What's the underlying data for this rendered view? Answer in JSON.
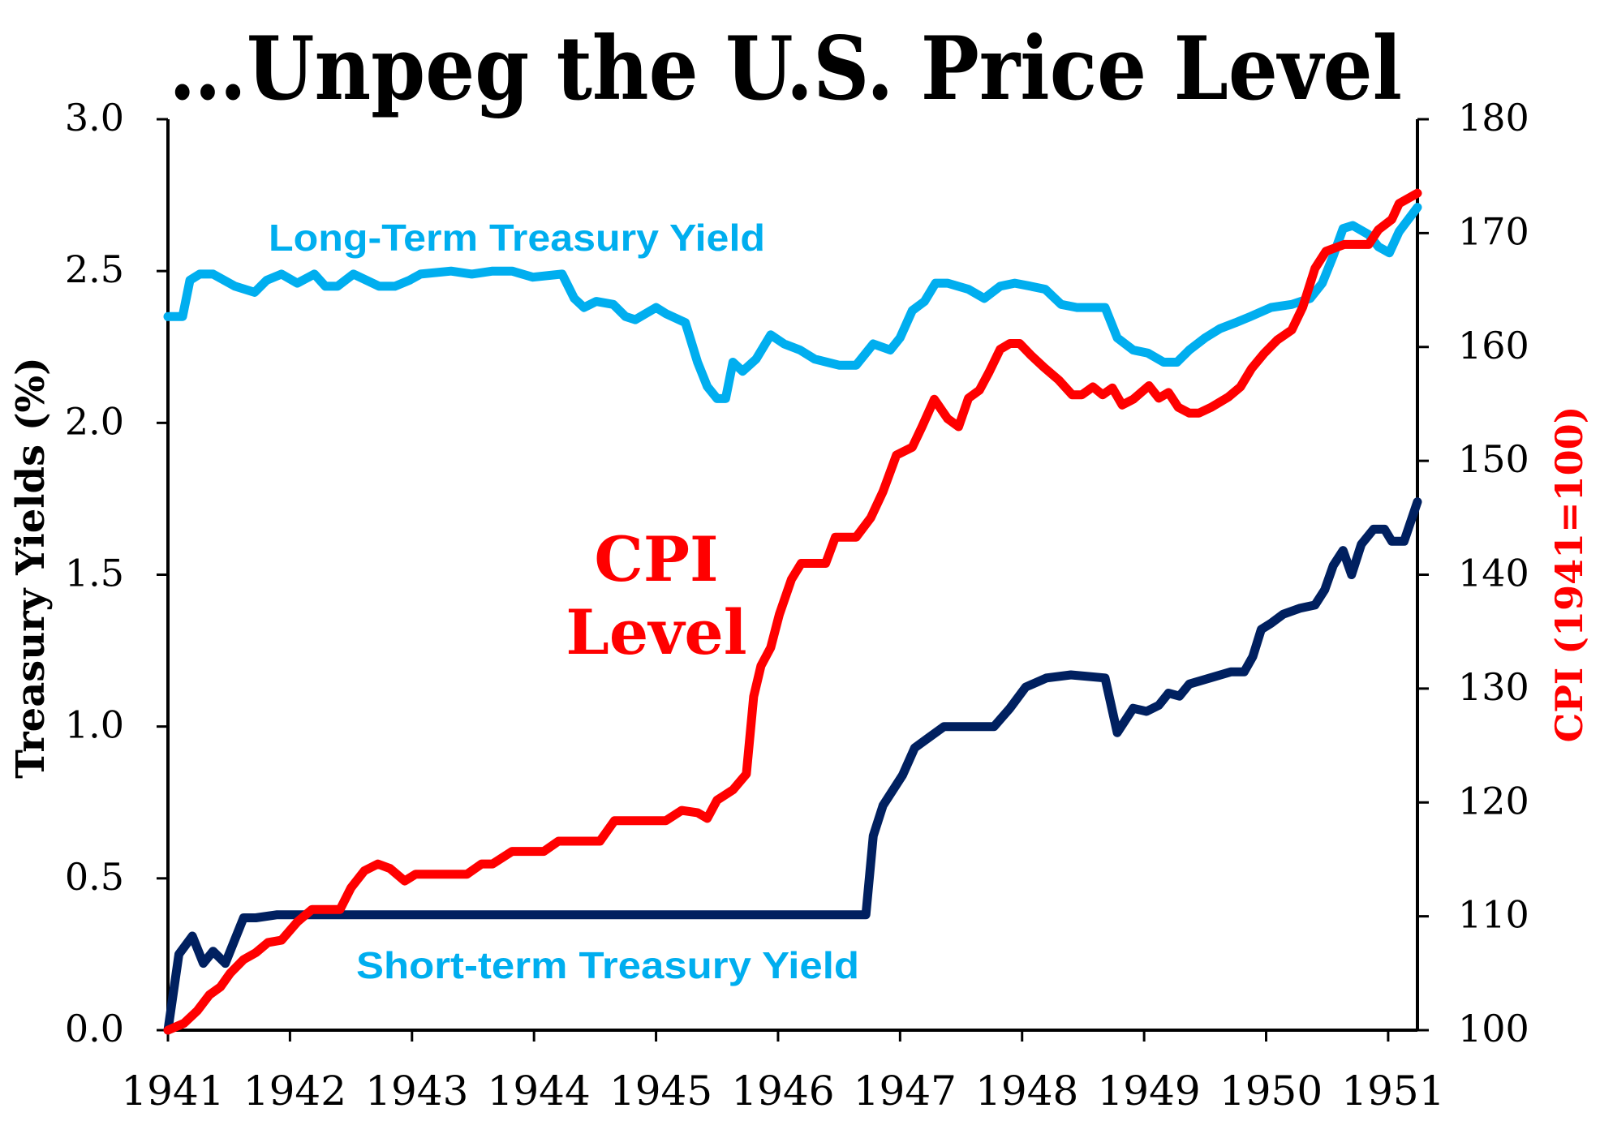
{
  "chart_data": {
    "type": "line",
    "title": "…Unpeg the U.S. Price Level",
    "ylabel": "Treasury Yields (%)",
    "y2label": "CPI (1941=100)",
    "xlabel": "",
    "xlim": [
      1941,
      1951.24
    ],
    "ylim": [
      0,
      3.0
    ],
    "y2lim": [
      100,
      180
    ],
    "x_ticks": [
      "1941",
      "1942",
      "1943",
      "1944",
      "1945",
      "1946",
      "1947",
      "1948",
      "1949",
      "1950",
      "1951"
    ],
    "y_ticks": [
      "0.0",
      "0.5",
      "1.0",
      "1.5",
      "2.0",
      "2.5",
      "3.0"
    ],
    "y2_ticks": [
      "100",
      "110",
      "120",
      "130",
      "140",
      "150",
      "160",
      "170",
      "180"
    ],
    "grid": false,
    "annotations": {
      "long_term": "Long-Term Treasury Yield",
      "short_term": "Short-term Treasury Yield",
      "cpi_line1": "CPI",
      "cpi_line2": "Level"
    },
    "series": [
      {
        "name": "Long-Term Treasury Yield",
        "axis": "left",
        "color": "#00AEEF",
        "points": [
          [
            1941.0,
            2.35
          ],
          [
            1941.12,
            2.35
          ],
          [
            1941.18,
            2.47
          ],
          [
            1941.26,
            2.49
          ],
          [
            1941.37,
            2.49
          ],
          [
            1941.55,
            2.45
          ],
          [
            1941.71,
            2.43
          ],
          [
            1941.81,
            2.47
          ],
          [
            1941.93,
            2.49
          ],
          [
            1942.06,
            2.46
          ],
          [
            1942.2,
            2.49
          ],
          [
            1942.29,
            2.45
          ],
          [
            1942.39,
            2.45
          ],
          [
            1942.52,
            2.49
          ],
          [
            1942.73,
            2.45
          ],
          [
            1942.86,
            2.45
          ],
          [
            1942.98,
            2.47
          ],
          [
            1943.07,
            2.49
          ],
          [
            1943.32,
            2.5
          ],
          [
            1943.49,
            2.49
          ],
          [
            1943.66,
            2.5
          ],
          [
            1943.82,
            2.5
          ],
          [
            1943.99,
            2.48
          ],
          [
            1944.23,
            2.49
          ],
          [
            1944.33,
            2.41
          ],
          [
            1944.41,
            2.38
          ],
          [
            1944.51,
            2.4
          ],
          [
            1944.65,
            2.39
          ],
          [
            1944.75,
            2.35
          ],
          [
            1944.83,
            2.34
          ],
          [
            1945.0,
            2.38
          ],
          [
            1945.08,
            2.36
          ],
          [
            1945.24,
            2.33
          ],
          [
            1945.34,
            2.2
          ],
          [
            1945.42,
            2.12
          ],
          [
            1945.5,
            2.08
          ],
          [
            1945.57,
            2.08
          ],
          [
            1945.63,
            2.2
          ],
          [
            1945.71,
            2.17
          ],
          [
            1945.82,
            2.21
          ],
          [
            1945.94,
            2.29
          ],
          [
            1946.05,
            2.26
          ],
          [
            1946.18,
            2.24
          ],
          [
            1946.3,
            2.21
          ],
          [
            1946.5,
            2.19
          ],
          [
            1946.64,
            2.19
          ],
          [
            1946.78,
            2.26
          ],
          [
            1946.92,
            2.24
          ],
          [
            1947.0,
            2.28
          ],
          [
            1947.1,
            2.37
          ],
          [
            1947.2,
            2.4
          ],
          [
            1947.29,
            2.46
          ],
          [
            1947.39,
            2.46
          ],
          [
            1947.56,
            2.44
          ],
          [
            1947.69,
            2.41
          ],
          [
            1947.82,
            2.45
          ],
          [
            1947.94,
            2.46
          ],
          [
            1948.07,
            2.45
          ],
          [
            1948.19,
            2.44
          ],
          [
            1948.32,
            2.39
          ],
          [
            1948.45,
            2.38
          ],
          [
            1948.68,
            2.38
          ],
          [
            1948.78,
            2.28
          ],
          [
            1948.91,
            2.24
          ],
          [
            1949.03,
            2.23
          ],
          [
            1949.16,
            2.2
          ],
          [
            1949.27,
            2.2
          ],
          [
            1949.37,
            2.24
          ],
          [
            1949.5,
            2.28
          ],
          [
            1949.62,
            2.31
          ],
          [
            1949.75,
            2.33
          ],
          [
            1949.87,
            2.35
          ],
          [
            1950.04,
            2.38
          ],
          [
            1950.21,
            2.39
          ],
          [
            1950.36,
            2.41
          ],
          [
            1950.46,
            2.46
          ],
          [
            1950.55,
            2.55
          ],
          [
            1950.63,
            2.64
          ],
          [
            1950.71,
            2.65
          ],
          [
            1950.84,
            2.62
          ],
          [
            1950.92,
            2.58
          ],
          [
            1951.01,
            2.56
          ],
          [
            1951.09,
            2.63
          ],
          [
            1951.24,
            2.71
          ]
        ]
      },
      {
        "name": "Short-term Treasury Yield",
        "axis": "left",
        "color": "#002060",
        "points": [
          [
            1941.0,
            0.0
          ],
          [
            1941.09,
            0.25
          ],
          [
            1941.2,
            0.31
          ],
          [
            1941.29,
            0.22
          ],
          [
            1941.37,
            0.26
          ],
          [
            1941.47,
            0.22
          ],
          [
            1941.62,
            0.37
          ],
          [
            1941.72,
            0.37
          ],
          [
            1941.89,
            0.38
          ],
          [
            1942.14,
            0.38
          ],
          [
            1942.4,
            0.38
          ],
          [
            1942.65,
            0.38
          ],
          [
            1942.98,
            0.38
          ],
          [
            1943.32,
            0.38
          ],
          [
            1943.82,
            0.38
          ],
          [
            1944.66,
            0.38
          ],
          [
            1945.5,
            0.38
          ],
          [
            1946.34,
            0.38
          ],
          [
            1946.72,
            0.38
          ],
          [
            1946.78,
            0.64
          ],
          [
            1946.86,
            0.74
          ],
          [
            1947.02,
            0.84
          ],
          [
            1947.12,
            0.93
          ],
          [
            1947.36,
            1.0
          ],
          [
            1947.77,
            1.0
          ],
          [
            1947.9,
            1.06
          ],
          [
            1948.03,
            1.13
          ],
          [
            1948.2,
            1.16
          ],
          [
            1948.4,
            1.17
          ],
          [
            1948.68,
            1.16
          ],
          [
            1948.78,
            0.98
          ],
          [
            1948.91,
            1.06
          ],
          [
            1949.02,
            1.05
          ],
          [
            1949.12,
            1.07
          ],
          [
            1949.2,
            1.11
          ],
          [
            1949.29,
            1.1
          ],
          [
            1949.37,
            1.14
          ],
          [
            1949.54,
            1.16
          ],
          [
            1949.71,
            1.18
          ],
          [
            1949.82,
            1.18
          ],
          [
            1949.89,
            1.23
          ],
          [
            1949.96,
            1.32
          ],
          [
            1950.04,
            1.34
          ],
          [
            1950.14,
            1.37
          ],
          [
            1950.28,
            1.39
          ],
          [
            1950.4,
            1.4
          ],
          [
            1950.48,
            1.45
          ],
          [
            1950.55,
            1.53
          ],
          [
            1950.63,
            1.58
          ],
          [
            1950.7,
            1.5
          ],
          [
            1950.78,
            1.6
          ],
          [
            1950.88,
            1.65
          ],
          [
            1950.97,
            1.65
          ],
          [
            1951.03,
            1.61
          ],
          [
            1951.13,
            1.61
          ],
          [
            1951.24,
            1.74
          ]
        ]
      },
      {
        "name": "CPI Level",
        "axis": "right",
        "color": "#FF0000",
        "points": [
          [
            1941.0,
            100.0
          ],
          [
            1941.13,
            100.6
          ],
          [
            1941.24,
            101.7
          ],
          [
            1941.34,
            103.1
          ],
          [
            1941.43,
            103.8
          ],
          [
            1941.51,
            105.0
          ],
          [
            1941.62,
            106.2
          ],
          [
            1941.72,
            106.8
          ],
          [
            1941.82,
            107.7
          ],
          [
            1941.93,
            107.9
          ],
          [
            1942.06,
            109.5
          ],
          [
            1942.18,
            110.6
          ],
          [
            1942.33,
            110.6
          ],
          [
            1942.41,
            110.6
          ],
          [
            1942.5,
            112.5
          ],
          [
            1942.61,
            114.0
          ],
          [
            1942.72,
            114.6
          ],
          [
            1942.82,
            114.2
          ],
          [
            1942.94,
            113.1
          ],
          [
            1943.03,
            113.7
          ],
          [
            1943.15,
            113.7
          ],
          [
            1943.45,
            113.7
          ],
          [
            1943.57,
            114.6
          ],
          [
            1943.66,
            114.6
          ],
          [
            1943.82,
            115.7
          ],
          [
            1944.08,
            115.7
          ],
          [
            1944.2,
            116.6
          ],
          [
            1944.54,
            116.6
          ],
          [
            1944.66,
            118.4
          ],
          [
            1945.08,
            118.4
          ],
          [
            1945.21,
            119.3
          ],
          [
            1945.34,
            119.1
          ],
          [
            1945.42,
            118.6
          ],
          [
            1945.5,
            120.2
          ],
          [
            1945.63,
            121.1
          ],
          [
            1945.74,
            122.5
          ],
          [
            1945.8,
            129.3
          ],
          [
            1945.86,
            132.0
          ],
          [
            1945.94,
            133.6
          ],
          [
            1946.01,
            136.5
          ],
          [
            1946.11,
            139.6
          ],
          [
            1946.19,
            141.0
          ],
          [
            1946.39,
            141.0
          ],
          [
            1946.47,
            143.3
          ],
          [
            1946.64,
            143.3
          ],
          [
            1946.76,
            145.0
          ],
          [
            1946.86,
            147.3
          ],
          [
            1946.97,
            150.5
          ],
          [
            1947.1,
            151.2
          ],
          [
            1947.18,
            153.0
          ],
          [
            1947.28,
            155.4
          ],
          [
            1947.39,
            153.7
          ],
          [
            1947.48,
            153.0
          ],
          [
            1947.56,
            155.5
          ],
          [
            1947.65,
            156.2
          ],
          [
            1947.73,
            157.8
          ],
          [
            1947.82,
            159.8
          ],
          [
            1947.9,
            160.3
          ],
          [
            1947.98,
            160.3
          ],
          [
            1948.07,
            159.3
          ],
          [
            1948.18,
            158.2
          ],
          [
            1948.3,
            157.1
          ],
          [
            1948.41,
            155.8
          ],
          [
            1948.49,
            155.8
          ],
          [
            1948.58,
            156.5
          ],
          [
            1948.66,
            155.8
          ],
          [
            1948.74,
            156.4
          ],
          [
            1948.82,
            154.9
          ],
          [
            1948.91,
            155.4
          ],
          [
            1949.04,
            156.6
          ],
          [
            1949.12,
            155.5
          ],
          [
            1949.2,
            156.0
          ],
          [
            1949.28,
            154.7
          ],
          [
            1949.37,
            154.2
          ],
          [
            1949.45,
            154.2
          ],
          [
            1949.55,
            154.7
          ],
          [
            1949.69,
            155.6
          ],
          [
            1949.79,
            156.5
          ],
          [
            1949.88,
            158.1
          ],
          [
            1949.98,
            159.4
          ],
          [
            1950.09,
            160.6
          ],
          [
            1950.21,
            161.5
          ],
          [
            1950.3,
            163.5
          ],
          [
            1950.4,
            166.9
          ],
          [
            1950.49,
            168.4
          ],
          [
            1950.64,
            169.0
          ],
          [
            1950.84,
            169.0
          ],
          [
            1950.92,
            170.3
          ],
          [
            1951.03,
            171.2
          ],
          [
            1951.09,
            172.6
          ],
          [
            1951.24,
            173.5
          ]
        ]
      }
    ]
  }
}
